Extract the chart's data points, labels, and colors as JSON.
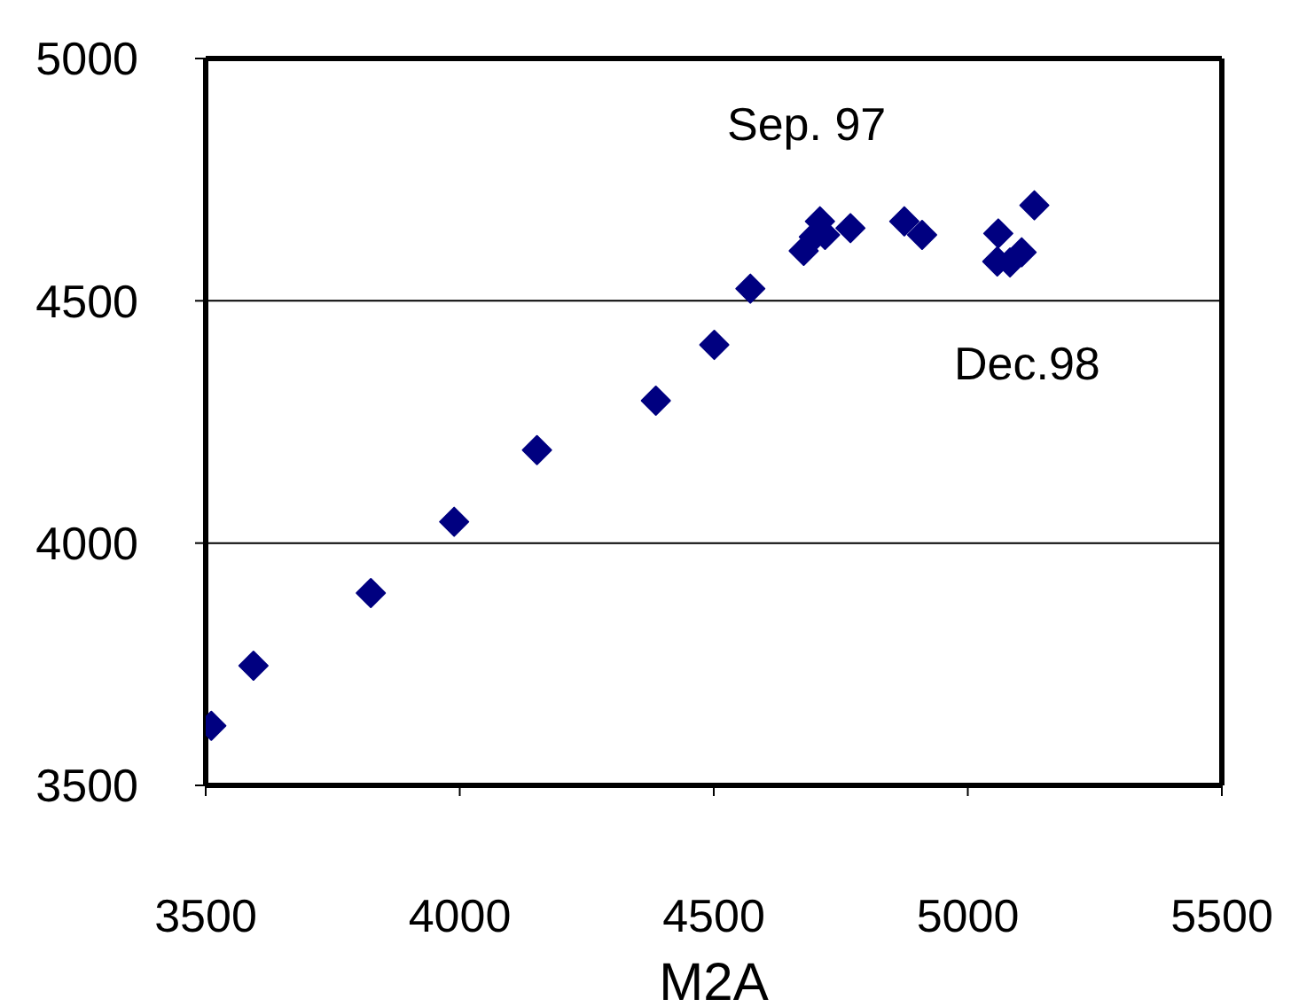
{
  "chart_data": {
    "type": "scatter",
    "xlabel": "M2A",
    "marker": "diamond",
    "grid": "y",
    "xlim": [
      3500,
      5500
    ],
    "xticks": [
      3500,
      4000,
      4500,
      5000,
      5500
    ],
    "ylim": [
      3500,
      5000
    ],
    "yticks": [
      3500,
      4000,
      4500,
      5000
    ],
    "series": [
      {
        "color": "#000080",
        "x": [
          3511,
          3594,
          3825,
          3989,
          4152,
          4386,
          4501,
          4572,
          4677,
          4697,
          4709,
          4719,
          4769,
          4875,
          4910,
          5060,
          5058,
          5083,
          5106,
          5131
        ],
        "values": [
          3623,
          3747,
          3897,
          4044,
          4192,
          4294,
          4409,
          4525,
          4603,
          4632,
          4664,
          4636,
          4650,
          4664,
          4636,
          4639,
          4581,
          4579,
          4600,
          4697
        ]
      }
    ],
    "annotations": [
      "Sep. 97",
      "Dec.98"
    ]
  }
}
